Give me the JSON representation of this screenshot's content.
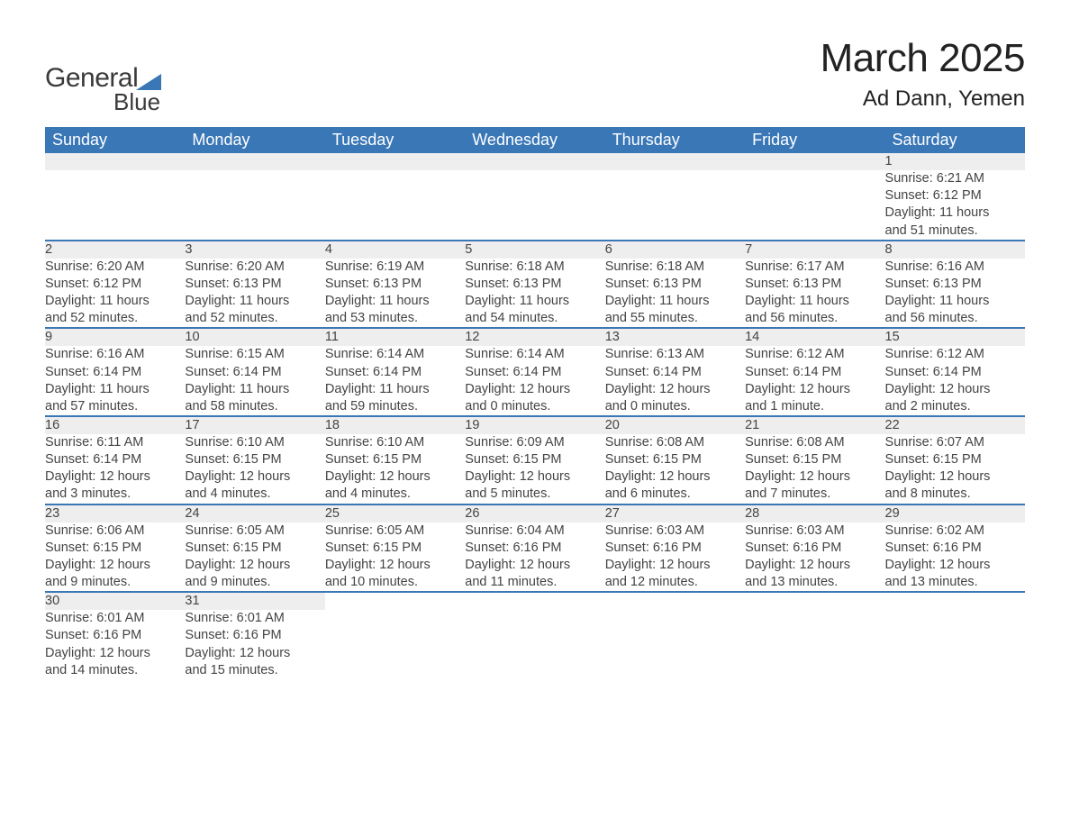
{
  "brand": {
    "word1": "General",
    "word2": "Blue",
    "accent_color": "#3a77b7"
  },
  "header": {
    "title": "March 2025",
    "subtitle": "Ad Dann, Yemen"
  },
  "style": {
    "header_bg": "#3a77b7",
    "header_text": "#ffffff",
    "daynum_bg": "#eeeeee",
    "row_border": "#3a77b7",
    "body_text": "#444444",
    "page_bg": "#ffffff",
    "title_fontsize": 44,
    "subtitle_fontsize": 24,
    "weekday_fontsize": 18,
    "cell_fontsize": 14.5
  },
  "weekdays": [
    "Sunday",
    "Monday",
    "Tuesday",
    "Wednesday",
    "Thursday",
    "Friday",
    "Saturday"
  ],
  "weeks": [
    [
      null,
      null,
      null,
      null,
      null,
      null,
      {
        "n": "1",
        "sr": "Sunrise: 6:21 AM",
        "ss": "Sunset: 6:12 PM",
        "d1": "Daylight: 11 hours",
        "d2": "and 51 minutes."
      }
    ],
    [
      {
        "n": "2",
        "sr": "Sunrise: 6:20 AM",
        "ss": "Sunset: 6:12 PM",
        "d1": "Daylight: 11 hours",
        "d2": "and 52 minutes."
      },
      {
        "n": "3",
        "sr": "Sunrise: 6:20 AM",
        "ss": "Sunset: 6:13 PM",
        "d1": "Daylight: 11 hours",
        "d2": "and 52 minutes."
      },
      {
        "n": "4",
        "sr": "Sunrise: 6:19 AM",
        "ss": "Sunset: 6:13 PM",
        "d1": "Daylight: 11 hours",
        "d2": "and 53 minutes."
      },
      {
        "n": "5",
        "sr": "Sunrise: 6:18 AM",
        "ss": "Sunset: 6:13 PM",
        "d1": "Daylight: 11 hours",
        "d2": "and 54 minutes."
      },
      {
        "n": "6",
        "sr": "Sunrise: 6:18 AM",
        "ss": "Sunset: 6:13 PM",
        "d1": "Daylight: 11 hours",
        "d2": "and 55 minutes."
      },
      {
        "n": "7",
        "sr": "Sunrise: 6:17 AM",
        "ss": "Sunset: 6:13 PM",
        "d1": "Daylight: 11 hours",
        "d2": "and 56 minutes."
      },
      {
        "n": "8",
        "sr": "Sunrise: 6:16 AM",
        "ss": "Sunset: 6:13 PM",
        "d1": "Daylight: 11 hours",
        "d2": "and 56 minutes."
      }
    ],
    [
      {
        "n": "9",
        "sr": "Sunrise: 6:16 AM",
        "ss": "Sunset: 6:14 PM",
        "d1": "Daylight: 11 hours",
        "d2": "and 57 minutes."
      },
      {
        "n": "10",
        "sr": "Sunrise: 6:15 AM",
        "ss": "Sunset: 6:14 PM",
        "d1": "Daylight: 11 hours",
        "d2": "and 58 minutes."
      },
      {
        "n": "11",
        "sr": "Sunrise: 6:14 AM",
        "ss": "Sunset: 6:14 PM",
        "d1": "Daylight: 11 hours",
        "d2": "and 59 minutes."
      },
      {
        "n": "12",
        "sr": "Sunrise: 6:14 AM",
        "ss": "Sunset: 6:14 PM",
        "d1": "Daylight: 12 hours",
        "d2": "and 0 minutes."
      },
      {
        "n": "13",
        "sr": "Sunrise: 6:13 AM",
        "ss": "Sunset: 6:14 PM",
        "d1": "Daylight: 12 hours",
        "d2": "and 0 minutes."
      },
      {
        "n": "14",
        "sr": "Sunrise: 6:12 AM",
        "ss": "Sunset: 6:14 PM",
        "d1": "Daylight: 12 hours",
        "d2": "and 1 minute."
      },
      {
        "n": "15",
        "sr": "Sunrise: 6:12 AM",
        "ss": "Sunset: 6:14 PM",
        "d1": "Daylight: 12 hours",
        "d2": "and 2 minutes."
      }
    ],
    [
      {
        "n": "16",
        "sr": "Sunrise: 6:11 AM",
        "ss": "Sunset: 6:14 PM",
        "d1": "Daylight: 12 hours",
        "d2": "and 3 minutes."
      },
      {
        "n": "17",
        "sr": "Sunrise: 6:10 AM",
        "ss": "Sunset: 6:15 PM",
        "d1": "Daylight: 12 hours",
        "d2": "and 4 minutes."
      },
      {
        "n": "18",
        "sr": "Sunrise: 6:10 AM",
        "ss": "Sunset: 6:15 PM",
        "d1": "Daylight: 12 hours",
        "d2": "and 4 minutes."
      },
      {
        "n": "19",
        "sr": "Sunrise: 6:09 AM",
        "ss": "Sunset: 6:15 PM",
        "d1": "Daylight: 12 hours",
        "d2": "and 5 minutes."
      },
      {
        "n": "20",
        "sr": "Sunrise: 6:08 AM",
        "ss": "Sunset: 6:15 PM",
        "d1": "Daylight: 12 hours",
        "d2": "and 6 minutes."
      },
      {
        "n": "21",
        "sr": "Sunrise: 6:08 AM",
        "ss": "Sunset: 6:15 PM",
        "d1": "Daylight: 12 hours",
        "d2": "and 7 minutes."
      },
      {
        "n": "22",
        "sr": "Sunrise: 6:07 AM",
        "ss": "Sunset: 6:15 PM",
        "d1": "Daylight: 12 hours",
        "d2": "and 8 minutes."
      }
    ],
    [
      {
        "n": "23",
        "sr": "Sunrise: 6:06 AM",
        "ss": "Sunset: 6:15 PM",
        "d1": "Daylight: 12 hours",
        "d2": "and 9 minutes."
      },
      {
        "n": "24",
        "sr": "Sunrise: 6:05 AM",
        "ss": "Sunset: 6:15 PM",
        "d1": "Daylight: 12 hours",
        "d2": "and 9 minutes."
      },
      {
        "n": "25",
        "sr": "Sunrise: 6:05 AM",
        "ss": "Sunset: 6:15 PM",
        "d1": "Daylight: 12 hours",
        "d2": "and 10 minutes."
      },
      {
        "n": "26",
        "sr": "Sunrise: 6:04 AM",
        "ss": "Sunset: 6:16 PM",
        "d1": "Daylight: 12 hours",
        "d2": "and 11 minutes."
      },
      {
        "n": "27",
        "sr": "Sunrise: 6:03 AM",
        "ss": "Sunset: 6:16 PM",
        "d1": "Daylight: 12 hours",
        "d2": "and 12 minutes."
      },
      {
        "n": "28",
        "sr": "Sunrise: 6:03 AM",
        "ss": "Sunset: 6:16 PM",
        "d1": "Daylight: 12 hours",
        "d2": "and 13 minutes."
      },
      {
        "n": "29",
        "sr": "Sunrise: 6:02 AM",
        "ss": "Sunset: 6:16 PM",
        "d1": "Daylight: 12 hours",
        "d2": "and 13 minutes."
      }
    ],
    [
      {
        "n": "30",
        "sr": "Sunrise: 6:01 AM",
        "ss": "Sunset: 6:16 PM",
        "d1": "Daylight: 12 hours",
        "d2": "and 14 minutes."
      },
      {
        "n": "31",
        "sr": "Sunrise: 6:01 AM",
        "ss": "Sunset: 6:16 PM",
        "d1": "Daylight: 12 hours",
        "d2": "and 15 minutes."
      },
      null,
      null,
      null,
      null,
      null
    ]
  ]
}
